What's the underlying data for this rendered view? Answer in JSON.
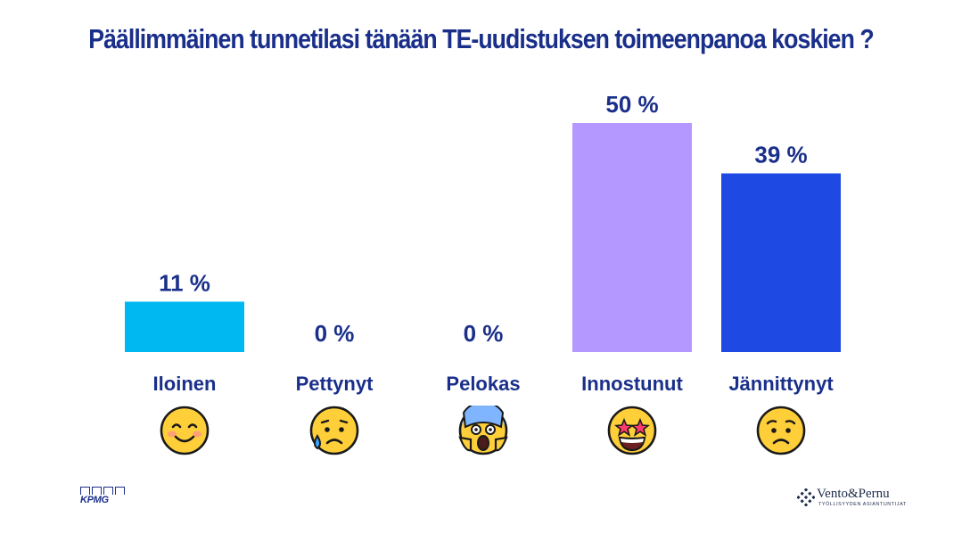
{
  "chart_data": {
    "type": "bar",
    "title": "Päällimmäinen tunnetilasi tänään TE-uudistuksen toimeenpanoa koskien ?",
    "categories": [
      "Iloinen",
      "Pettynyt",
      "Pelokas",
      "Innostunut",
      "Jännittynyt"
    ],
    "values": [
      11,
      0,
      0,
      50,
      39
    ],
    "data_labels": [
      "11 %",
      "0 %",
      "0 %",
      "50 %",
      "39 %"
    ],
    "colors": [
      "#00b8f1",
      "#00b8f1",
      "#00b8f1",
      "#b497ff",
      "#1e49e2"
    ],
    "emoji_icons": [
      "smiling-face-icon",
      "sad-sweat-face-icon",
      "screaming-face-icon",
      "star-struck-face-icon",
      "worried-face-icon"
    ],
    "ylim": [
      0,
      50
    ],
    "grid": false,
    "legend": "none"
  },
  "footer": {
    "left_logo": "KPMG",
    "right_logo_name": "Vento&Pernu",
    "right_logo_tagline": "TYÖLLISYYDEN ASIANTUNTIJAT"
  }
}
